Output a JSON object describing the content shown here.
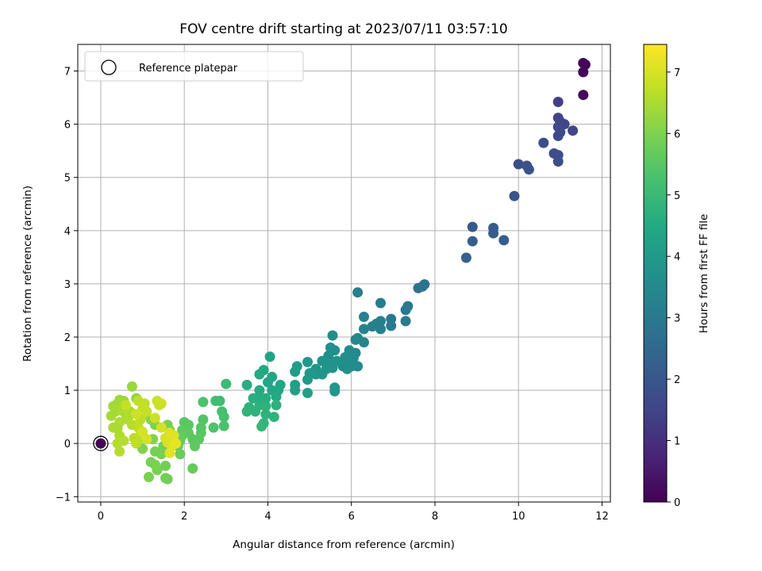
{
  "chart_data": {
    "type": "scatter",
    "title": "FOV centre drift starting at 2023/07/11 03:57:10",
    "xlabel": "Angular distance from reference (arcmin)",
    "ylabel": "Rotation from reference (arcmin)",
    "xlim": [
      -0.55,
      12.2
    ],
    "ylim": [
      -1.1,
      7.5
    ],
    "xticks": [
      0,
      2,
      4,
      6,
      8,
      10,
      12
    ],
    "yticks": [
      -1,
      0,
      1,
      2,
      3,
      4,
      5,
      6,
      7
    ],
    "grid": true,
    "colormap": "viridis",
    "colorbar": {
      "label": "Hours from first FF file",
      "range": [
        0,
        7.45
      ],
      "ticks": [
        0,
        1,
        2,
        3,
        4,
        5,
        6,
        7
      ]
    },
    "legend": {
      "position": "top-left",
      "entries": [
        "Reference platepar"
      ]
    },
    "reference_point": {
      "x": 0,
      "y": 0
    },
    "points": [
      [
        11.55,
        7.15,
        0.05
      ],
      [
        11.6,
        7.12,
        0.08
      ],
      [
        11.55,
        6.98,
        0.12
      ],
      [
        11.55,
        6.55,
        0.2
      ],
      [
        10.95,
        6.42,
        1.4
      ],
      [
        10.95,
        6.12,
        1.5
      ],
      [
        11.0,
        6.05,
        1.5
      ],
      [
        11.1,
        6.0,
        1.55
      ],
      [
        10.95,
        5.95,
        1.6
      ],
      [
        11.0,
        5.85,
        1.6
      ],
      [
        11.3,
        5.88,
        1.55
      ],
      [
        10.95,
        5.78,
        1.65
      ],
      [
        10.6,
        5.65,
        1.7
      ],
      [
        10.85,
        5.45,
        1.75
      ],
      [
        10.95,
        5.42,
        1.75
      ],
      [
        10.95,
        5.3,
        1.8
      ],
      [
        10.0,
        5.25,
        1.8
      ],
      [
        10.2,
        5.22,
        1.85
      ],
      [
        10.25,
        5.15,
        1.85
      ],
      [
        9.9,
        4.65,
        1.9
      ],
      [
        8.9,
        4.07,
        2.1
      ],
      [
        9.4,
        4.05,
        2.15
      ],
      [
        9.4,
        3.95,
        2.2
      ],
      [
        9.65,
        3.82,
        2.2
      ],
      [
        8.9,
        3.8,
        2.2
      ],
      [
        8.75,
        3.49,
        2.3
      ],
      [
        7.75,
        2.99,
        2.8
      ],
      [
        7.7,
        2.95,
        2.85
      ],
      [
        7.6,
        2.92,
        2.85
      ],
      [
        7.35,
        2.58,
        2.95
      ],
      [
        7.3,
        2.51,
        3.0
      ],
      [
        7.3,
        2.3,
        3.0
      ],
      [
        6.95,
        2.34,
        3.05
      ],
      [
        6.95,
        2.21,
        3.1
      ],
      [
        6.7,
        2.64,
        3.1
      ],
      [
        6.7,
        2.3,
        3.15
      ],
      [
        6.6,
        2.25,
        3.2
      ],
      [
        6.7,
        2.15,
        3.2
      ],
      [
        6.5,
        2.2,
        3.25
      ],
      [
        6.3,
        2.38,
        3.25
      ],
      [
        6.3,
        2.15,
        3.3
      ],
      [
        6.15,
        2.84,
        3.2
      ],
      [
        6.3,
        1.9,
        3.35
      ],
      [
        6.15,
        1.98,
        3.4
      ],
      [
        6.1,
        1.95,
        3.45
      ],
      [
        6.1,
        1.7,
        3.5
      ],
      [
        6.05,
        1.6,
        3.55
      ],
      [
        5.95,
        1.75,
        3.55
      ],
      [
        5.85,
        1.62,
        3.6
      ],
      [
        6.15,
        1.45,
        3.55
      ],
      [
        5.9,
        1.55,
        3.6
      ],
      [
        5.8,
        1.45,
        3.65
      ],
      [
        5.6,
        1.75,
        3.65
      ],
      [
        5.55,
        2.03,
        3.6
      ],
      [
        5.5,
        1.8,
        3.7
      ],
      [
        5.45,
        1.65,
        3.7
      ],
      [
        5.3,
        1.55,
        3.75
      ],
      [
        5.45,
        1.5,
        3.75
      ],
      [
        5.55,
        1.42,
        3.8
      ],
      [
        5.65,
        1.55,
        3.8
      ],
      [
        5.4,
        1.4,
        3.85
      ],
      [
        5.15,
        1.4,
        3.85
      ],
      [
        5.3,
        1.3,
        3.9
      ],
      [
        5.15,
        1.3,
        3.9
      ],
      [
        5.0,
        1.32,
        3.95
      ],
      [
        4.95,
        1.53,
        3.95
      ],
      [
        4.95,
        1.2,
        4.0
      ],
      [
        5.6,
        1.05,
        3.85
      ],
      [
        5.6,
        0.98,
        3.9
      ],
      [
        5.9,
        1.4,
        3.7
      ],
      [
        6.0,
        1.45,
        3.65
      ],
      [
        4.7,
        1.45,
        4.05
      ],
      [
        4.65,
        1.35,
        4.1
      ],
      [
        4.65,
        1.1,
        4.15
      ],
      [
        4.65,
        1.0,
        4.2
      ],
      [
        4.95,
        0.95,
        4.15
      ],
      [
        4.05,
        1.63,
        4.3
      ],
      [
        4.1,
        1.25,
        4.35
      ],
      [
        4.0,
        1.15,
        4.4
      ],
      [
        4.1,
        1.0,
        4.45
      ],
      [
        4.25,
        1.0,
        4.45
      ],
      [
        4.3,
        1.1,
        4.4
      ],
      [
        4.2,
        0.88,
        4.5
      ],
      [
        3.9,
        1.38,
        4.45
      ],
      [
        3.8,
        1.3,
        4.5
      ],
      [
        3.8,
        1.0,
        4.55
      ],
      [
        3.8,
        0.88,
        4.6
      ],
      [
        3.95,
        0.85,
        4.6
      ],
      [
        3.65,
        0.85,
        4.65
      ],
      [
        3.8,
        0.72,
        4.7
      ],
      [
        3.55,
        0.68,
        4.75
      ],
      [
        3.5,
        0.6,
        4.8
      ],
      [
        3.7,
        0.6,
        4.8
      ],
      [
        3.95,
        0.55,
        4.8
      ],
      [
        4.15,
        0.5,
        4.8
      ],
      [
        3.9,
        0.38,
        4.85
      ],
      [
        3.85,
        0.32,
        4.9
      ],
      [
        4.2,
        0.72,
        4.75
      ],
      [
        3.95,
        0.7,
        4.75
      ],
      [
        3.5,
        1.1,
        4.6
      ],
      [
        3.0,
        1.12,
        5.05
      ],
      [
        2.85,
        0.8,
        5.1
      ],
      [
        2.75,
        0.8,
        5.15
      ],
      [
        2.9,
        0.6,
        5.2
      ],
      [
        2.95,
        0.5,
        5.25
      ],
      [
        2.95,
        0.33,
        5.3
      ],
      [
        2.7,
        0.3,
        5.35
      ],
      [
        2.45,
        0.78,
        5.3
      ],
      [
        2.45,
        0.45,
        5.4
      ],
      [
        2.4,
        0.3,
        5.45
      ],
      [
        2.4,
        0.2,
        5.5
      ],
      [
        2.35,
        0.08,
        5.55
      ],
      [
        2.2,
        0.08,
        5.55
      ],
      [
        2.25,
        -0.05,
        5.6
      ],
      [
        2.0,
        0.4,
        5.5
      ],
      [
        2.1,
        0.35,
        5.55
      ],
      [
        2.1,
        0.2,
        5.6
      ],
      [
        1.95,
        0.25,
        5.6
      ],
      [
        1.95,
        0.15,
        5.65
      ],
      [
        1.9,
        0.05,
        5.7
      ],
      [
        1.85,
        -0.05,
        5.7
      ],
      [
        1.9,
        -0.2,
        5.75
      ],
      [
        2.2,
        -0.47,
        5.7
      ],
      [
        1.75,
        0.05,
        5.75
      ],
      [
        1.65,
        0.05,
        5.8
      ],
      [
        1.55,
        0.1,
        5.8
      ],
      [
        1.6,
        -0.1,
        5.85
      ],
      [
        1.5,
        -0.05,
        5.85
      ],
      [
        1.45,
        -0.2,
        5.9
      ],
      [
        1.3,
        -0.15,
        5.9
      ],
      [
        1.2,
        -0.35,
        5.9
      ],
      [
        1.35,
        -0.5,
        5.9
      ],
      [
        1.55,
        -0.42,
        5.85
      ],
      [
        1.6,
        -0.67,
        5.85
      ],
      [
        1.55,
        -0.65,
        5.85
      ],
      [
        1.15,
        -0.63,
        5.95
      ],
      [
        1.3,
        -0.4,
        5.95
      ],
      [
        1.0,
        -0.1,
        6.0
      ],
      [
        1.05,
        0.1,
        6.0
      ],
      [
        1.25,
        0.08,
        6.05
      ],
      [
        1.6,
        0.35,
        5.95
      ],
      [
        1.65,
        0.25,
        5.9
      ],
      [
        1.3,
        0.35,
        6.0
      ],
      [
        1.2,
        0.45,
        6.1
      ],
      [
        1.05,
        0.55,
        6.15
      ],
      [
        0.85,
        0.85,
        6.2
      ],
      [
        0.75,
        1.07,
        6.3
      ],
      [
        0.55,
        0.8,
        6.35
      ],
      [
        0.45,
        0.82,
        6.35
      ],
      [
        0.4,
        0.75,
        6.4
      ],
      [
        0.3,
        0.7,
        6.4
      ],
      [
        0.35,
        0.6,
        6.45
      ],
      [
        0.25,
        0.52,
        6.45
      ],
      [
        0.5,
        0.62,
        6.5
      ],
      [
        0.6,
        0.55,
        6.5
      ],
      [
        0.7,
        0.6,
        6.55
      ],
      [
        0.65,
        0.45,
        6.55
      ],
      [
        0.45,
        0.4,
        6.55
      ],
      [
        0.4,
        0.28,
        6.5
      ],
      [
        0.3,
        0.3,
        6.5
      ],
      [
        0.45,
        0.15,
        6.55
      ],
      [
        0.4,
        0.0,
        6.6
      ],
      [
        0.45,
        -0.15,
        6.6
      ],
      [
        0.55,
        0.05,
        6.6
      ],
      [
        0.75,
        0.35,
        6.6
      ],
      [
        0.8,
        0.1,
        6.65
      ],
      [
        0.85,
        0.0,
        6.7
      ],
      [
        0.95,
        0.15,
        6.7
      ],
      [
        0.9,
        0.3,
        6.7
      ],
      [
        0.95,
        0.45,
        6.7
      ],
      [
        1.0,
        0.55,
        6.7
      ],
      [
        1.05,
        0.75,
        6.75
      ],
      [
        0.9,
        0.8,
        6.75
      ],
      [
        1.0,
        0.65,
        6.8
      ],
      [
        1.1,
        0.6,
        6.8
      ],
      [
        1.35,
        0.8,
        6.85
      ],
      [
        1.45,
        0.75,
        6.9
      ],
      [
        1.4,
        0.72,
        6.9
      ],
      [
        1.3,
        0.48,
        6.9
      ],
      [
        1.45,
        0.3,
        6.95
      ],
      [
        1.55,
        0.1,
        7.0
      ],
      [
        1.6,
        0.02,
        7.0
      ],
      [
        1.65,
        0.2,
        7.05
      ],
      [
        1.75,
        0.15,
        7.1
      ],
      [
        1.7,
        -0.05,
        7.1
      ],
      [
        1.65,
        -0.18,
        7.15
      ],
      [
        1.8,
        0.0,
        7.2
      ],
      [
        1.1,
        0.08,
        7.0
      ],
      [
        1.0,
        0.22,
        7.0
      ],
      [
        0.85,
        0.55,
        6.9
      ],
      [
        0.6,
        0.72,
        6.8
      ]
    ]
  }
}
